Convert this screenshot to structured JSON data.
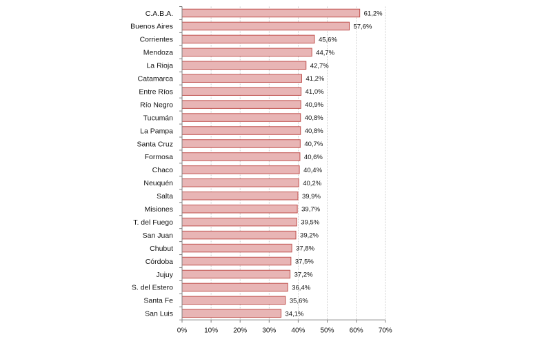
{
  "chart_data": {
    "type": "bar",
    "orientation": "horizontal",
    "title": "",
    "xlabel": "",
    "ylabel": "",
    "xlim": [
      0,
      70
    ],
    "x_ticks": [
      "0%",
      "10%",
      "20%",
      "30%",
      "40%",
      "50%",
      "60%",
      "70%"
    ],
    "grid": "vertical dashed",
    "legend": "none",
    "categories": [
      "C.A.B.A.",
      "Buenos Aires",
      "Corrientes",
      "Mendoza",
      "La Rioja",
      "Catamarca",
      "Entre Ríos",
      "Río Negro",
      "Tucumán",
      "La Pampa",
      "Santa Cruz",
      "Formosa",
      "Chaco",
      "Neuquén",
      "Salta",
      "Misiones",
      "T. del Fuego",
      "San Juan",
      "Chubut",
      "Córdoba",
      "Jujuy",
      "S. del Estero",
      "Santa Fe",
      "San Luis"
    ],
    "values": [
      61.2,
      57.6,
      45.6,
      44.7,
      42.7,
      41.2,
      41.0,
      40.9,
      40.8,
      40.8,
      40.7,
      40.6,
      40.4,
      40.2,
      39.9,
      39.7,
      39.5,
      39.2,
      37.8,
      37.5,
      37.2,
      36.4,
      35.6,
      34.1
    ],
    "value_labels": [
      "61,2%",
      "57,6%",
      "45,6%",
      "44,7%",
      "42,7%",
      "41,2%",
      "41,0%",
      "40,9%",
      "40,8%",
      "40,8%",
      "40,7%",
      "40,6%",
      "40,4%",
      "40,2%",
      "39,9%",
      "39,7%",
      "39,5%",
      "39,2%",
      "37,8%",
      "37,5%",
      "37,2%",
      "36,4%",
      "35,6%",
      "34,1%"
    ],
    "colors": {
      "bar_fill": "#e8b5b5",
      "bar_stroke": "#c0504d",
      "axis": "#7f7f7f",
      "grid": "#bfbfbf"
    }
  }
}
